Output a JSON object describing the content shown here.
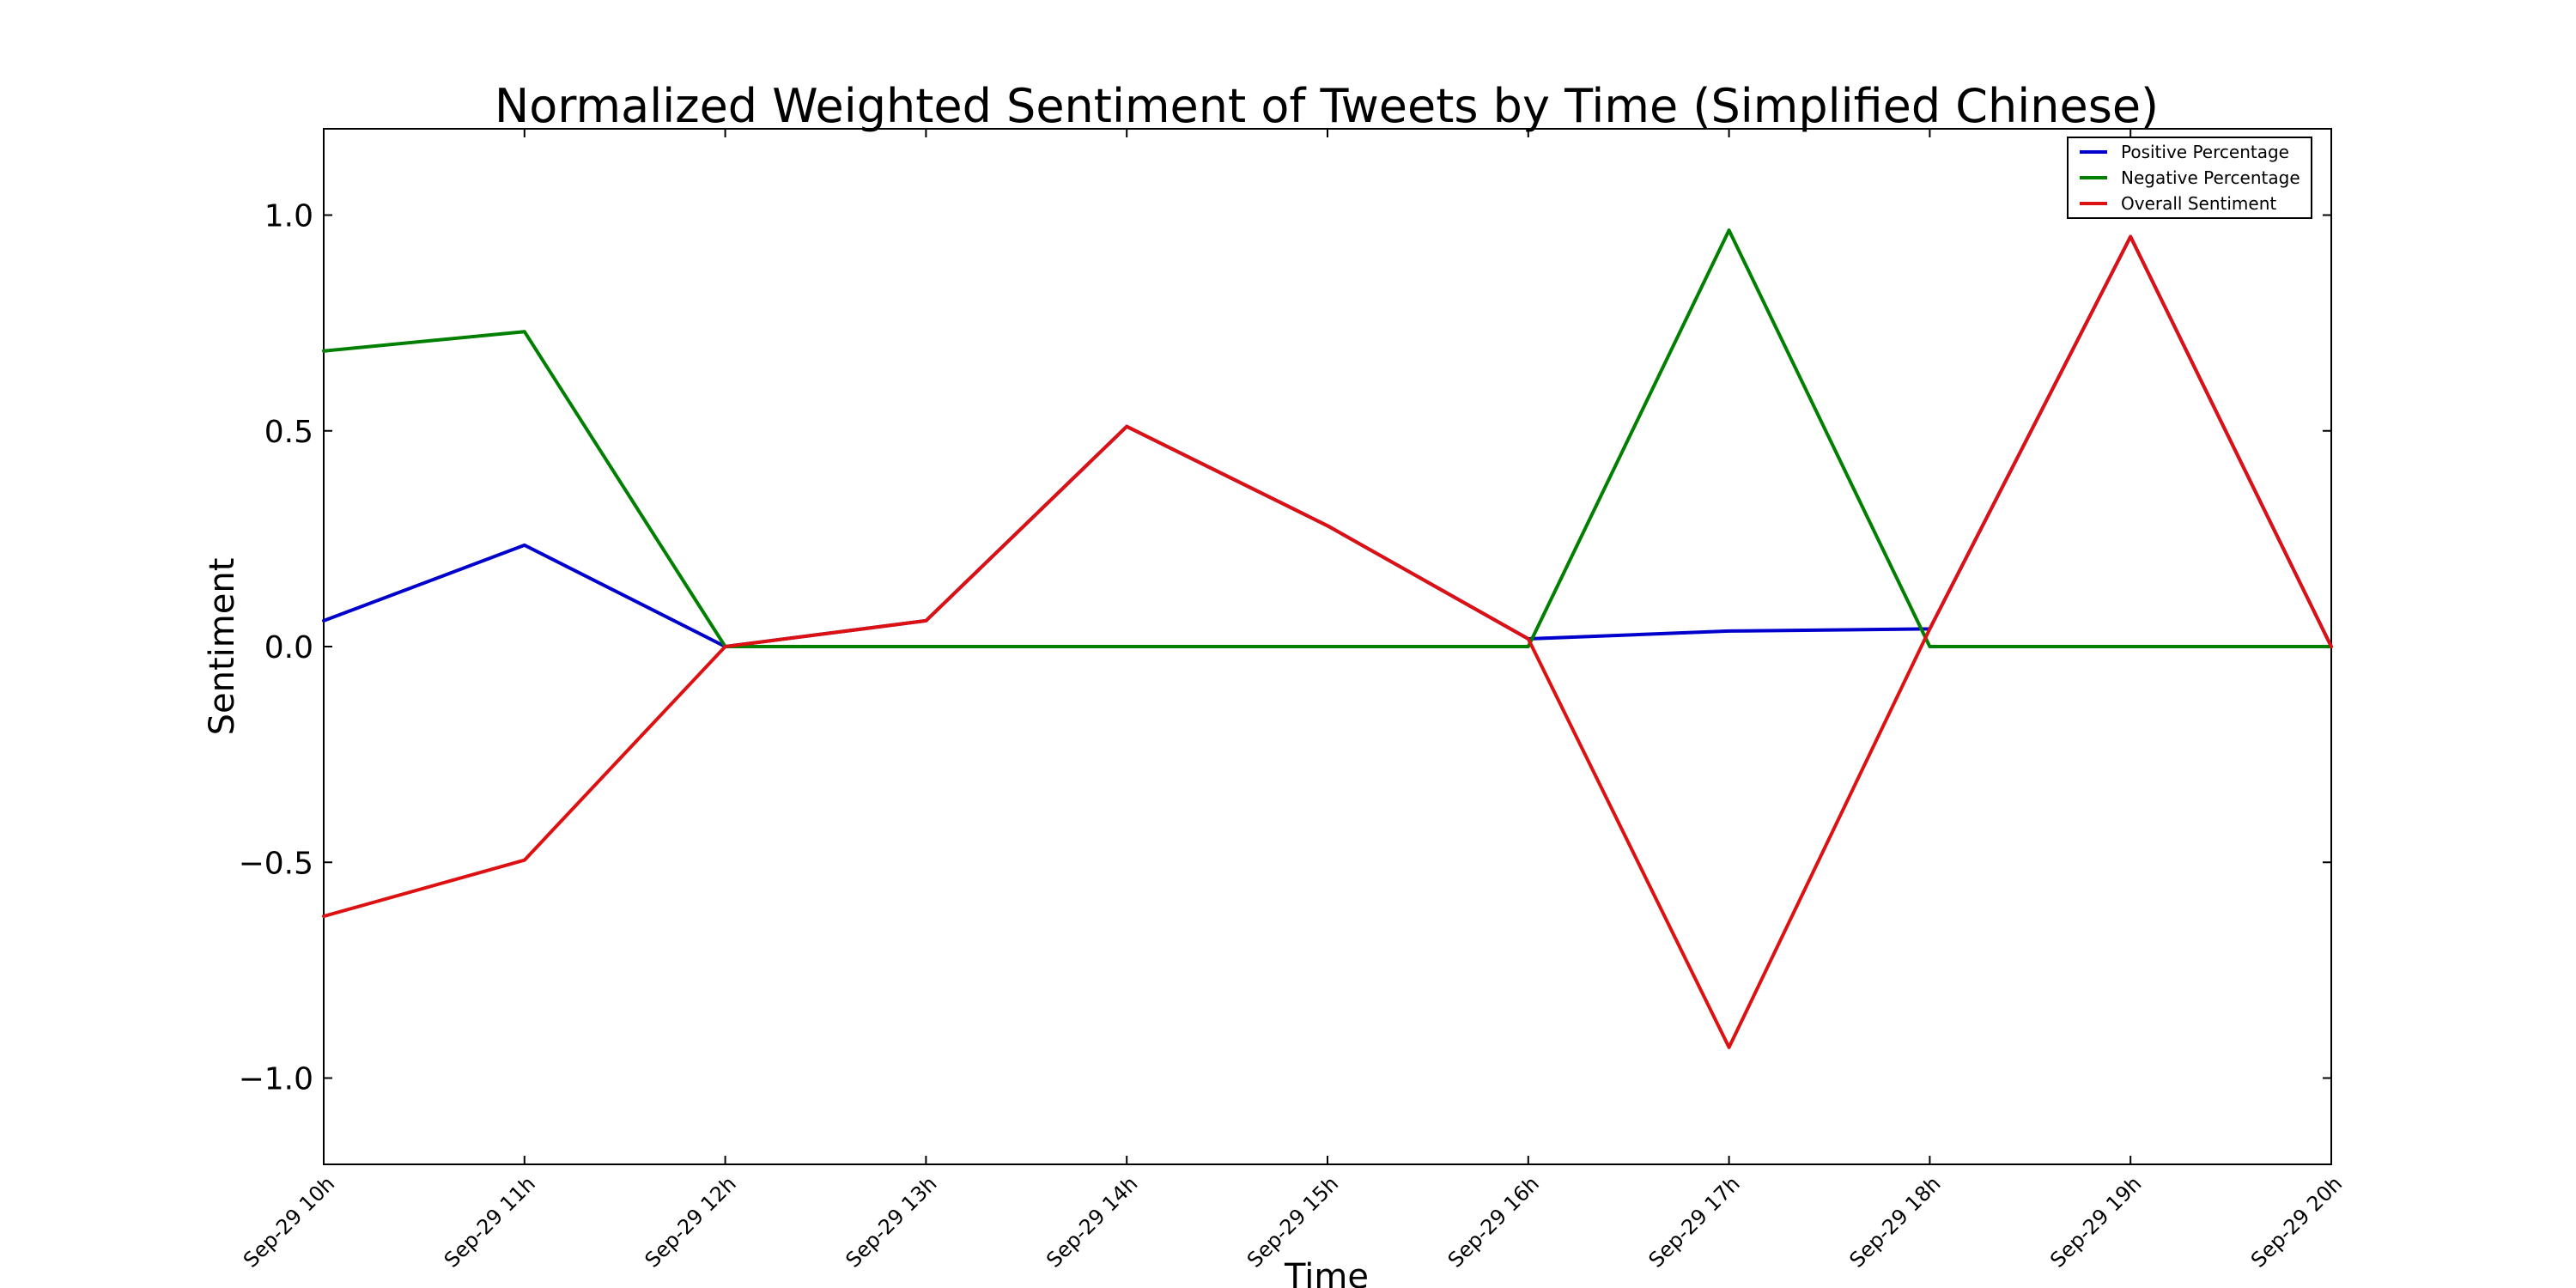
{
  "chart_data": {
    "type": "line",
    "title": "Normalized Weighted Sentiment of Tweets by Time (Simplified Chinese)",
    "xlabel": "Time",
    "ylabel": "Sentiment",
    "categories": [
      "Sep-29 10h",
      "Sep-29 11h",
      "Sep-29 12h",
      "Sep-29 13h",
      "Sep-29 14h",
      "Sep-29 15h",
      "Sep-29 16h",
      "Sep-29 17h",
      "Sep-29 18h",
      "Sep-29 19h",
      "Sep-29 20h"
    ],
    "ylim": [
      -1.2,
      1.2
    ],
    "yticks": [
      {
        "value": -1.0,
        "label": "−1.0"
      },
      {
        "value": -0.5,
        "label": "−0.5"
      },
      {
        "value": 0.0,
        "label": "0.0"
      },
      {
        "value": 0.5,
        "label": "0.5"
      },
      {
        "value": 1.0,
        "label": "1.0"
      }
    ],
    "grid": false,
    "legend_position": "top-right",
    "series": [
      {
        "name": "Positive Percentage",
        "color": "#0000cc",
        "values": [
          0.06,
          0.235,
          0.0,
          0.06,
          0.51,
          0.28,
          0.018,
          0.036,
          0.041,
          0.95,
          0.0
        ]
      },
      {
        "name": "Negative Percentage",
        "color": "#007f00",
        "values": [
          0.685,
          0.73,
          0.0,
          0.0,
          0.0,
          0.0,
          0.0,
          0.965,
          0.0,
          0.0,
          0.0
        ]
      },
      {
        "name": "Overall Sentiment",
        "color": "#dd1111",
        "values": [
          -0.625,
          -0.495,
          0.0,
          0.06,
          0.51,
          0.28,
          0.018,
          -0.929,
          0.041,
          0.95,
          0.0
        ]
      }
    ]
  }
}
